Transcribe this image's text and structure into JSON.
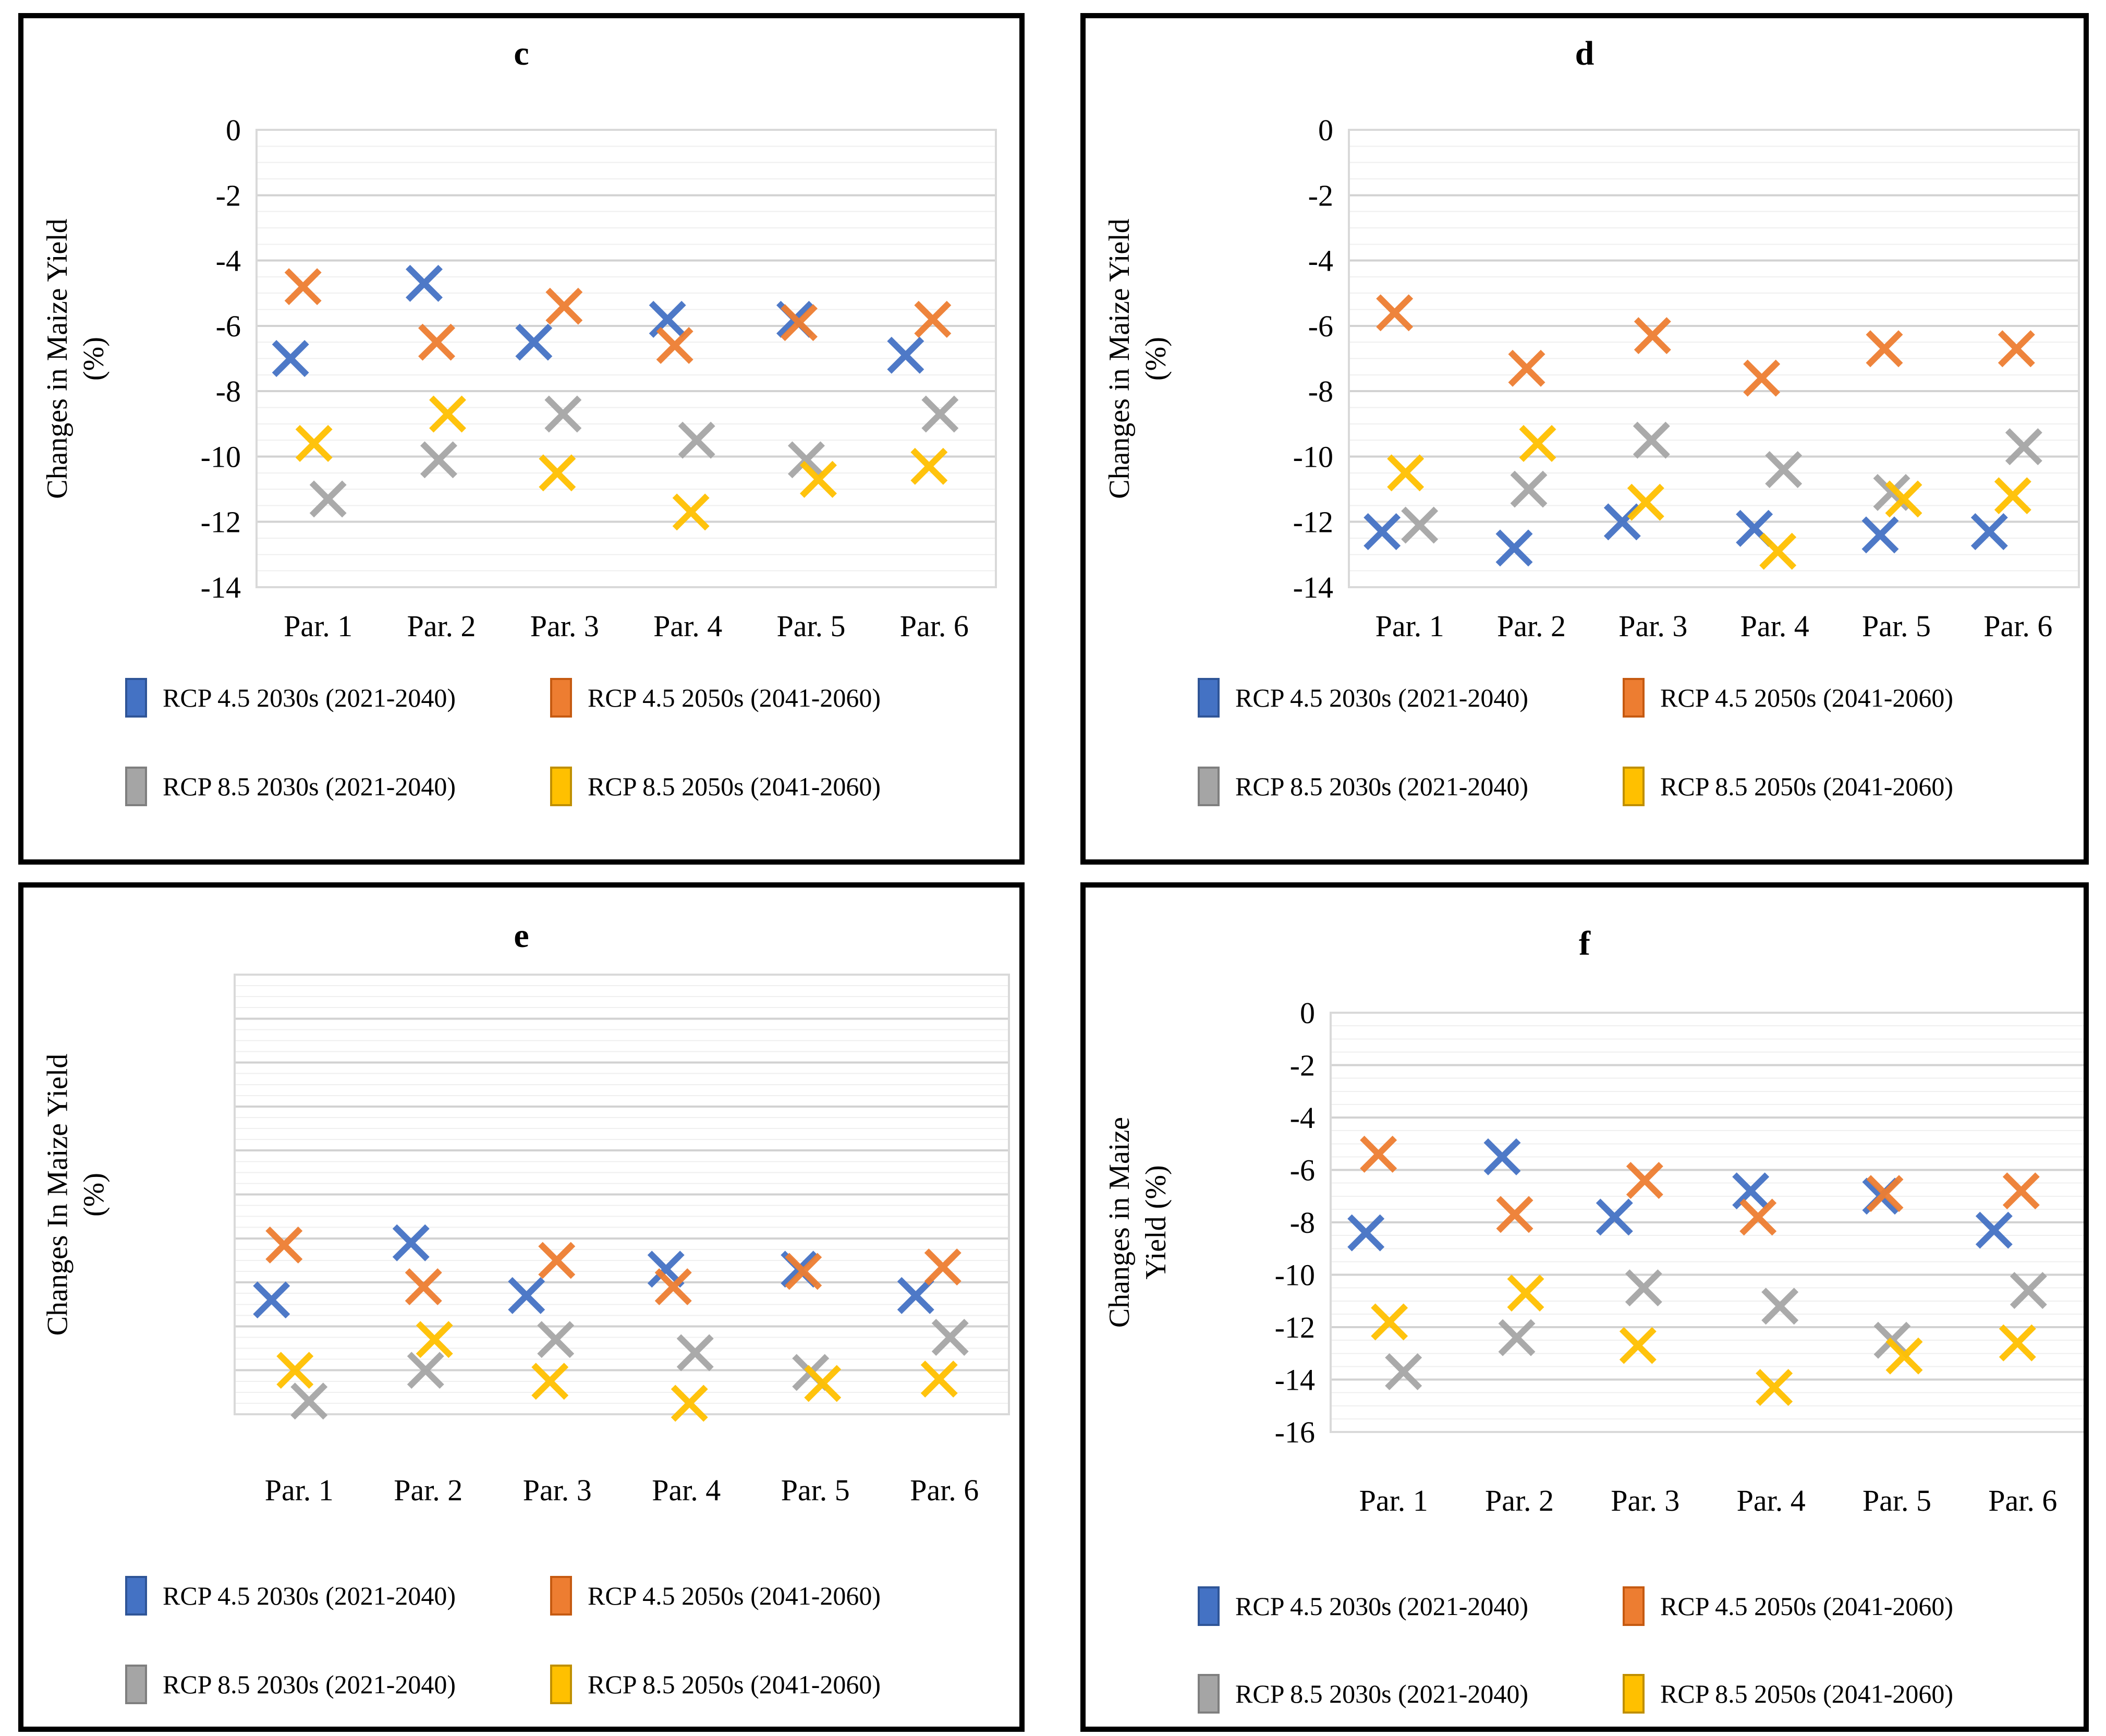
{
  "colors": {
    "blue": "#4472C4",
    "blue_dark": "#2F5597",
    "orange": "#ED7D31",
    "orange_dark": "#C55A11",
    "gray": "#A5A5A5",
    "gray_dark": "#7F7F7F",
    "yellow": "#FFC000",
    "yellow_dark": "#BF8F00",
    "grid_minor": "#EFEFEF",
    "grid_major": "#D2D2D2",
    "plot_border": "#D9D9D9",
    "panel_border": "#000000",
    "text": "#000000"
  },
  "categories": [
    "Par. 1",
    "Par. 2",
    "Par. 3",
    "Par. 4",
    "Par. 5",
    "Par. 6"
  ],
  "legend_items": [
    "RCP 4.5 2030s (2021-2040)",
    "RCP 4.5 2050s (2041-2060)",
    "RCP 8.5 2030s (2021-2040)",
    "RCP 8.5 2050s (2041-2060)"
  ],
  "chart_data": [
    {
      "id": "c",
      "type": "scatter",
      "title": "c",
      "ylabel": [
        "Changes in Maize Yield",
        "(%)"
      ],
      "xlabel": "",
      "ylim": [
        0,
        -14
      ],
      "ytick_step": 2,
      "minor_gridline_step": 0.5,
      "y_tick_labels": [
        "0",
        "-2",
        "-4",
        "-6",
        "-8",
        "-10",
        "-12",
        "-14"
      ],
      "y_tick_labels_visible": true,
      "grid": true,
      "legend_position": "bottom",
      "marker": "x",
      "categories": [
        "Par. 1",
        "Par. 2",
        "Par. 3",
        "Par. 4",
        "Par. 5",
        "Par. 6"
      ],
      "series": [
        {
          "name": "RCP 4.5 2030s (2021-2040)",
          "color": "#4472C4",
          "values": [
            -7.0,
            -4.7,
            -6.5,
            -5.8,
            -5.8,
            -6.9
          ]
        },
        {
          "name": "RCP 4.5 2050s (2041-2060)",
          "color": "#ED7D31",
          "values": [
            -4.8,
            -6.5,
            -5.4,
            -6.6,
            -5.9,
            -5.8
          ]
        },
        {
          "name": "RCP 8.5 2030s (2021-2040)",
          "color": "#A5A5A5",
          "values": [
            -11.3,
            -10.1,
            -8.7,
            -9.5,
            -10.1,
            -8.7
          ]
        },
        {
          "name": "RCP 8.5 2050s (2041-2060)",
          "color": "#FFC000",
          "values": [
            -9.6,
            -8.7,
            -10.5,
            -11.7,
            -10.7,
            -10.3
          ]
        }
      ]
    },
    {
      "id": "d",
      "type": "scatter",
      "title": "d",
      "ylabel": [
        "Changes in Maize Yield",
        "(%)"
      ],
      "xlabel": "",
      "ylim": [
        0,
        -14
      ],
      "ytick_step": 2,
      "minor_gridline_step": 0.5,
      "y_tick_labels": [
        "0",
        "-2",
        "-4",
        "-6",
        "-8",
        "-10",
        "-12",
        "-14"
      ],
      "y_tick_labels_visible": true,
      "grid": true,
      "legend_position": "bottom",
      "marker": "x",
      "categories": [
        "Par. 1",
        "Par. 2",
        "Par. 3",
        "Par. 4",
        "Par. 5",
        "Par. 6"
      ],
      "series": [
        {
          "name": "RCP 4.5 2030s (2021-2040)",
          "color": "#4472C4",
          "values": [
            -12.3,
            -12.8,
            -12.0,
            -12.2,
            -12.4,
            -12.3
          ]
        },
        {
          "name": "RCP 4.5 2050s (2041-2060)",
          "color": "#ED7D31",
          "values": [
            -5.6,
            -7.3,
            -6.3,
            -7.6,
            -6.7,
            -6.7
          ]
        },
        {
          "name": "RCP 8.5 2030s (2021-2040)",
          "color": "#A5A5A5",
          "values": [
            -12.1,
            -11.0,
            -9.5,
            -10.4,
            -11.1,
            -9.7
          ]
        },
        {
          "name": "RCP 8.5 2050s (2041-2060)",
          "color": "#FFC000",
          "values": [
            -10.5,
            -9.6,
            -11.4,
            -12.9,
            -11.3,
            -11.2
          ]
        }
      ]
    },
    {
      "id": "e",
      "type": "scatter",
      "title": "e",
      "ylabel": [
        "Changes In Maize Yield",
        "(%)"
      ],
      "xlabel": "",
      "ylim": [
        0,
        -20
      ],
      "ytick_step": 2,
      "minor_gridline_step": 0.5,
      "y_tick_labels": [],
      "y_tick_labels_visible": false,
      "grid": true,
      "legend_position": "bottom",
      "marker": "x",
      "categories": [
        "Par. 1",
        "Par. 2",
        "Par. 3",
        "Par. 4",
        "Par. 5",
        "Par. 6"
      ],
      "series": [
        {
          "name": "RCP 4.5 2030s (2021-2040)",
          "color": "#4472C4",
          "values": [
            -14.8,
            -12.2,
            -14.6,
            -13.4,
            -13.4,
            -14.6
          ]
        },
        {
          "name": "RCP 4.5 2050s (2041-2060)",
          "color": "#ED7D31",
          "values": [
            -12.3,
            -14.2,
            -13.0,
            -14.2,
            -13.5,
            -13.3
          ]
        },
        {
          "name": "RCP 8.5 2030s (2021-2040)",
          "color": "#A5A5A5",
          "values": [
            -19.4,
            -18.0,
            -16.6,
            -17.2,
            -18.1,
            -16.5
          ]
        },
        {
          "name": "RCP 8.5 2050s (2041-2060)",
          "color": "#FFC000",
          "values": [
            -18.0,
            -16.6,
            -18.5,
            -19.5,
            -18.6,
            -18.4
          ]
        }
      ]
    },
    {
      "id": "f",
      "type": "scatter",
      "title": "f",
      "ylabel": [
        "Changes in Maize",
        "Yield (%)"
      ],
      "xlabel": "",
      "ylim": [
        0,
        -16
      ],
      "ytick_step": 2,
      "minor_gridline_step": 0.5,
      "y_tick_labels": [
        "0",
        "-2",
        "-4",
        "-6",
        "-8",
        "-10",
        "-12",
        "-14",
        "-16"
      ],
      "y_tick_labels_visible": true,
      "grid": true,
      "legend_position": "bottom",
      "marker": "x",
      "categories": [
        "Par. 1",
        "Par. 2",
        "Par. 3",
        "Par. 4",
        "Par. 5",
        "Par. 6"
      ],
      "series": [
        {
          "name": "RCP 4.5 2030s (2021-2040)",
          "color": "#4472C4",
          "values": [
            -8.4,
            -5.5,
            -7.8,
            -6.8,
            -7.0,
            -8.3
          ]
        },
        {
          "name": "RCP 4.5 2050s (2041-2060)",
          "color": "#ED7D31",
          "values": [
            -5.4,
            -7.7,
            -6.4,
            -7.8,
            -6.9,
            -6.8
          ]
        },
        {
          "name": "RCP 8.5 2030s (2021-2040)",
          "color": "#A5A5A5",
          "values": [
            -13.7,
            -12.4,
            -10.5,
            -11.2,
            -12.5,
            -10.6
          ]
        },
        {
          "name": "RCP 8.5 2050s (2041-2060)",
          "color": "#FFC000",
          "values": [
            -11.8,
            -10.7,
            -12.7,
            -14.3,
            -13.1,
            -12.6
          ]
        }
      ]
    }
  ]
}
